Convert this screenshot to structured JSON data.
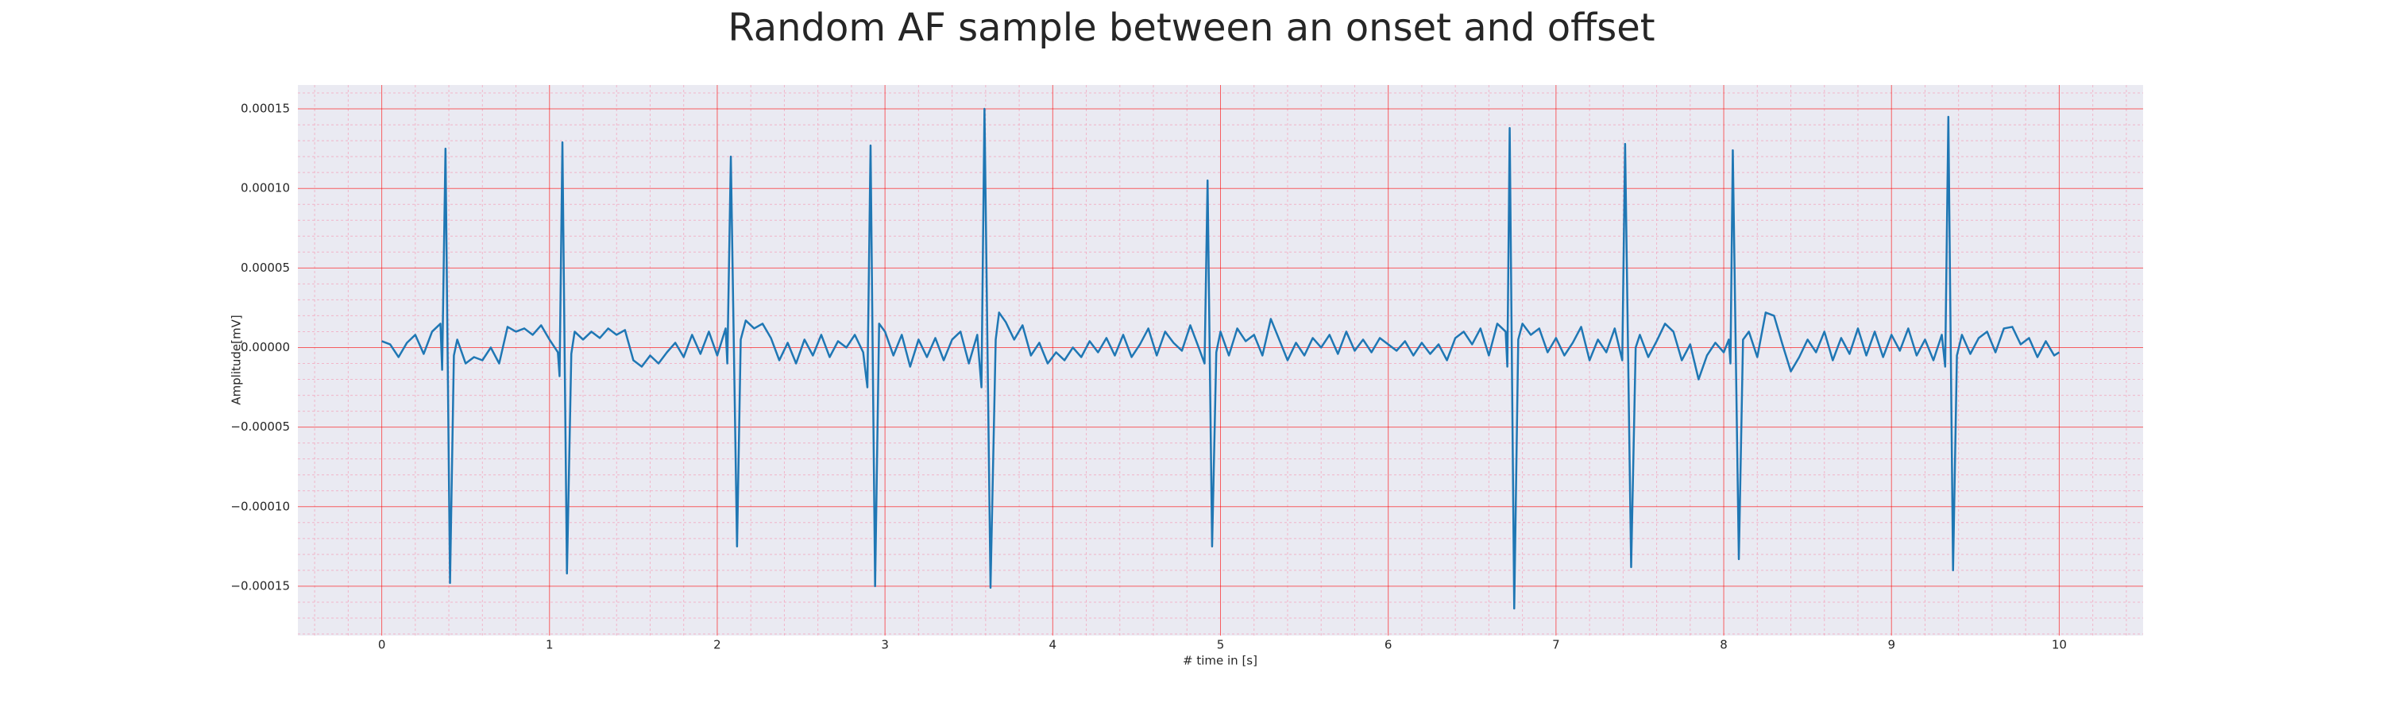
{
  "chart_data": {
    "type": "line",
    "title": "Random AF sample between an onset and offset",
    "xlabel": "# time in [s]",
    "ylabel": "Amplitude[mV]",
    "color": "#1f77b4",
    "grid": true,
    "minor_grid": true,
    "xlim": [
      -0.5,
      10.5
    ],
    "ylim": [
      -0.000181,
      0.000165
    ],
    "xticks": [
      0,
      1,
      2,
      3,
      4,
      5,
      6,
      7,
      8,
      9,
      10
    ],
    "yticks": [
      {
        "value": -0.00015,
        "label": "−0.00015"
      },
      {
        "value": -0.0001,
        "label": "−0.00010"
      },
      {
        "value": -5e-05,
        "label": "−0.00005"
      },
      {
        "value": 0,
        "label": "0.00000"
      },
      {
        "value": 5e-05,
        "label": "0.00005"
      },
      {
        "value": 0.0001,
        "label": "0.00010"
      },
      {
        "value": 0.00015,
        "label": "0.00015"
      }
    ],
    "x": [
      0.0,
      0.05,
      0.1,
      0.15,
      0.2,
      0.25,
      0.3,
      0.35,
      0.36,
      0.38,
      0.407,
      0.43,
      0.45,
      0.5,
      0.55,
      0.6,
      0.65,
      0.7,
      0.75,
      0.8,
      0.85,
      0.9,
      0.95,
      1.0,
      1.05,
      1.06,
      1.077,
      1.104,
      1.13,
      1.15,
      1.2,
      1.25,
      1.3,
      1.35,
      1.4,
      1.45,
      1.5,
      1.55,
      1.6,
      1.65,
      1.7,
      1.75,
      1.8,
      1.85,
      1.9,
      1.95,
      2.0,
      2.05,
      2.06,
      2.081,
      2.118,
      2.14,
      2.17,
      2.22,
      2.27,
      2.32,
      2.37,
      2.42,
      2.47,
      2.52,
      2.57,
      2.62,
      2.67,
      2.72,
      2.77,
      2.82,
      2.87,
      2.895,
      2.914,
      2.941,
      2.965,
      3.0,
      3.05,
      3.1,
      3.15,
      3.2,
      3.25,
      3.3,
      3.35,
      3.4,
      3.45,
      3.5,
      3.55,
      3.575,
      3.593,
      3.629,
      3.66,
      3.68,
      3.72,
      3.77,
      3.82,
      3.87,
      3.92,
      3.97,
      4.02,
      4.07,
      4.12,
      4.17,
      4.22,
      4.27,
      4.32,
      4.37,
      4.42,
      4.47,
      4.52,
      4.57,
      4.62,
      4.67,
      4.72,
      4.77,
      4.82,
      4.87,
      4.905,
      4.923,
      4.95,
      4.975,
      5.0,
      5.05,
      5.1,
      5.15,
      5.2,
      5.25,
      5.3,
      5.35,
      5.4,
      5.45,
      5.5,
      5.55,
      5.6,
      5.65,
      5.7,
      5.75,
      5.8,
      5.85,
      5.9,
      5.95,
      6.0,
      6.05,
      6.1,
      6.15,
      6.2,
      6.25,
      6.3,
      6.35,
      6.4,
      6.45,
      6.5,
      6.55,
      6.6,
      6.65,
      6.7,
      6.71,
      6.724,
      6.751,
      6.775,
      6.8,
      6.85,
      6.9,
      6.95,
      7.0,
      7.05,
      7.1,
      7.15,
      7.2,
      7.25,
      7.3,
      7.35,
      7.395,
      7.412,
      7.448,
      7.475,
      7.5,
      7.55,
      7.6,
      7.65,
      7.7,
      7.75,
      7.8,
      7.85,
      7.9,
      7.95,
      8.0,
      8.03,
      8.04,
      8.054,
      8.09,
      8.115,
      8.15,
      8.2,
      8.25,
      8.3,
      8.35,
      8.4,
      8.45,
      8.5,
      8.55,
      8.6,
      8.65,
      8.7,
      8.75,
      8.8,
      8.85,
      8.9,
      8.95,
      9.0,
      9.05,
      9.1,
      9.15,
      9.2,
      9.25,
      9.3,
      9.32,
      9.339,
      9.367,
      9.39,
      9.42,
      9.47,
      9.52,
      9.57,
      9.62,
      9.67,
      9.72,
      9.77,
      9.82,
      9.87,
      9.92,
      9.97,
      10.0
    ],
    "values": [
      4e-06,
      2e-06,
      -6e-06,
      3e-06,
      8e-06,
      -4e-06,
      1e-05,
      1.5e-05,
      -1.4e-05,
      0.000125,
      -0.000148,
      -5e-06,
      5e-06,
      -1e-05,
      -6e-06,
      -8e-06,
      0,
      -1e-05,
      1.3e-05,
      1e-05,
      1.2e-05,
      8e-06,
      1.4e-05,
      5e-06,
      -3e-06,
      -1.8e-05,
      0.000129,
      -0.000142,
      -4e-06,
      1e-05,
      5e-06,
      1e-05,
      6e-06,
      1.2e-05,
      8e-06,
      1.1e-05,
      -8e-06,
      -1.2e-05,
      -5e-06,
      -1e-05,
      -3e-06,
      3e-06,
      -6e-06,
      8e-06,
      -4e-06,
      1e-05,
      -5e-06,
      1.2e-05,
      -1e-05,
      0.00012,
      -0.000125,
      5e-06,
      1.7e-05,
      1.2e-05,
      1.5e-05,
      6e-06,
      -8e-06,
      3e-06,
      -1e-05,
      5e-06,
      -5e-06,
      8e-06,
      -6e-06,
      4e-06,
      0,
      8e-06,
      -3e-06,
      -2.5e-05,
      0.000127,
      -0.00015,
      1.5e-05,
      1e-05,
      -5e-06,
      8e-06,
      -1.2e-05,
      5e-06,
      -6e-06,
      6e-06,
      -8e-06,
      5e-06,
      1e-05,
      -1e-05,
      8e-06,
      -2.5e-05,
      0.00015,
      -0.000151,
      5e-06,
      2.2e-05,
      1.6e-05,
      5e-06,
      1.4e-05,
      -5e-06,
      3e-06,
      -1e-05,
      -3e-06,
      -8e-06,
      0,
      -6e-06,
      4e-06,
      -3e-06,
      6e-06,
      -5e-06,
      8e-06,
      -6e-06,
      2e-06,
      1.2e-05,
      -5e-06,
      1e-05,
      3e-06,
      -2e-06,
      1.4e-05,
      0,
      -1e-05,
      0.000105,
      -0.000125,
      -3e-06,
      1e-05,
      -5e-06,
      1.2e-05,
      4e-06,
      8e-06,
      -5e-06,
      1.8e-05,
      5e-06,
      -8e-06,
      3e-06,
      -5e-06,
      6e-06,
      0,
      8e-06,
      -4e-06,
      1e-05,
      -2e-06,
      5e-06,
      -3e-06,
      6e-06,
      2e-06,
      -2e-06,
      4e-06,
      -5e-06,
      3e-06,
      -4e-06,
      2e-06,
      -8e-06,
      6e-06,
      1e-05,
      2e-06,
      1.2e-05,
      -5e-06,
      1.5e-05,
      1e-05,
      -1.2e-05,
      0.000138,
      -0.000164,
      5e-06,
      1.5e-05,
      8e-06,
      1.2e-05,
      -3e-06,
      6e-06,
      -5e-06,
      3e-06,
      1.3e-05,
      -8e-06,
      5e-06,
      -3e-06,
      1.2e-05,
      -8e-06,
      0.000128,
      -0.000138,
      0,
      8e-06,
      -6e-06,
      4e-06,
      1.5e-05,
      1e-05,
      -8e-06,
      2e-06,
      -2e-05,
      -5e-06,
      3e-06,
      -3e-06,
      5e-06,
      -1e-05,
      0.000124,
      -0.000133,
      5e-06,
      1e-05,
      -6e-06,
      2.2e-05,
      2e-05,
      2e-06,
      -1.5e-05,
      -6e-06,
      5e-06,
      -3e-06,
      1e-05,
      -8e-06,
      6e-06,
      -4e-06,
      1.2e-05,
      -5e-06,
      1e-05,
      -6e-06,
      8e-06,
      -2e-06,
      1.2e-05,
      -5e-06,
      5e-06,
      -8e-06,
      8e-06,
      -1.2e-05,
      0.000145,
      -0.00014,
      -5e-06,
      8e-06,
      -4e-06,
      6e-06,
      1e-05,
      -3e-06,
      1.2e-05,
      1.3e-05,
      2e-06,
      6e-06,
      -6e-06,
      4e-06,
      -5e-06,
      -3e-06
    ]
  }
}
